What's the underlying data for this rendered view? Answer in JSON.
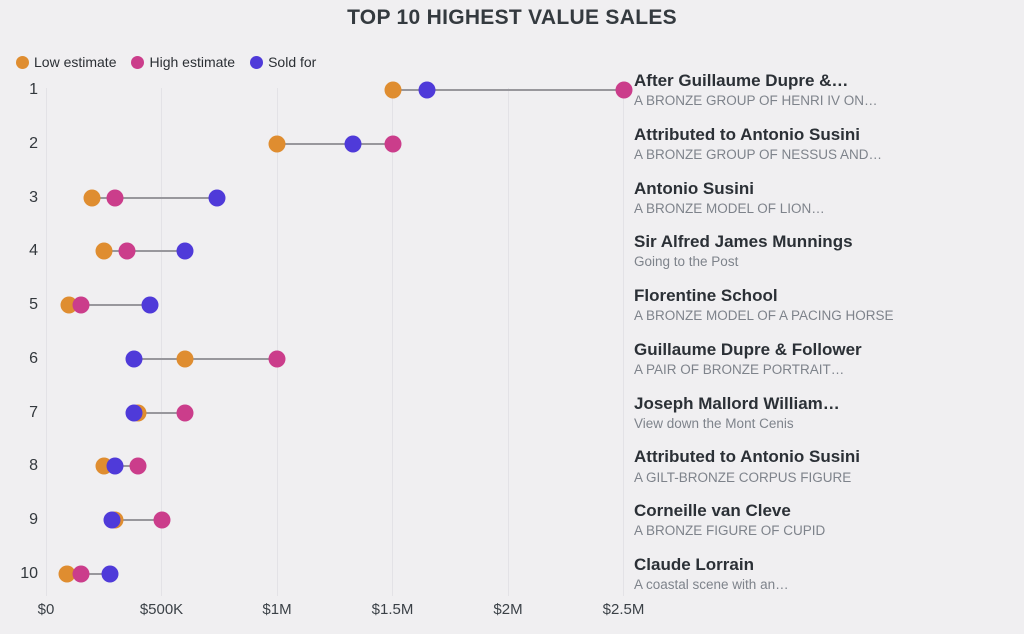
{
  "title": "TOP 10 HIGHEST VALUE SALES",
  "legend": [
    {
      "key": "low",
      "label": "Low estimate",
      "color": "#DF8D30"
    },
    {
      "key": "high",
      "label": "High estimate",
      "color": "#CB3D8B"
    },
    {
      "key": "sold",
      "label": "Sold for",
      "color": "#4F3AD9"
    }
  ],
  "colors": {
    "low": "#DF8D30",
    "high": "#CB3D8B",
    "sold": "#4F3AD9",
    "background": "#F0EFF1",
    "gridline": "#E3E2E6",
    "connector": "#98979C",
    "title_text": "#343A3F",
    "muted_text": "#7E838B"
  },
  "chart_data": {
    "type": "scatter",
    "variant": "dumbbell",
    "title": "TOP 10 HIGHEST VALUE SALES",
    "xlabel": "",
    "ylabel": "",
    "xlim": [
      0,
      2500000
    ],
    "grid": "vertical",
    "legend_position": "top-left",
    "x_axis": {
      "ticks": [
        "$0",
        "$500K",
        "$1M",
        "$1.5M",
        "$2M",
        "$2.5M"
      ],
      "tick_values": [
        0,
        500000,
        1000000,
        1500000,
        2000000,
        2500000
      ]
    },
    "series_keys": [
      "low",
      "high",
      "sold"
    ],
    "rows": [
      {
        "rank": 1,
        "artist": "After Guillaume Dupre &…",
        "work": "A BRONZE GROUP OF HENRI IV ON…",
        "low": 1500000,
        "high": 2500000,
        "sold": 1650000
      },
      {
        "rank": 2,
        "artist": "Attributed to Antonio Susini",
        "work": "A BRONZE GROUP OF NESSUS AND…",
        "low": 1000000,
        "high": 1500000,
        "sold": 1330000
      },
      {
        "rank": 3,
        "artist": "Antonio Susini",
        "work": "A BRONZE MODEL OF LION…",
        "low": 200000,
        "high": 300000,
        "sold": 740000
      },
      {
        "rank": 4,
        "artist": "Sir Alfred James Munnings",
        "work": "Going to the Post",
        "low": 250000,
        "high": 350000,
        "sold": 600000
      },
      {
        "rank": 5,
        "artist": "Florentine School",
        "work": "A BRONZE MODEL OF A PACING HORSE",
        "low": 100000,
        "high": 150000,
        "sold": 450000
      },
      {
        "rank": 6,
        "artist": "Guillaume Dupre & Follower",
        "work": "A PAIR OF BRONZE PORTRAIT…",
        "low": 600000,
        "high": 1000000,
        "sold": 380000
      },
      {
        "rank": 7,
        "artist": "Joseph Mallord William…",
        "work": "View down the Mont Cenis",
        "low": 400000,
        "high": 600000,
        "sold": 380000
      },
      {
        "rank": 8,
        "artist": "Attributed to Antonio Susini",
        "work": "A GILT-BRONZE CORPUS FIGURE",
        "low": 250000,
        "high": 400000,
        "sold": 300000
      },
      {
        "rank": 9,
        "artist": "Corneille van Cleve",
        "work": "A BRONZE FIGURE OF CUPID",
        "low": 300000,
        "high": 500000,
        "sold": 285000
      },
      {
        "rank": 10,
        "artist": "Claude Lorrain",
        "work": "A coastal scene with an…",
        "low": 90000,
        "high": 150000,
        "sold": 275000
      }
    ]
  }
}
